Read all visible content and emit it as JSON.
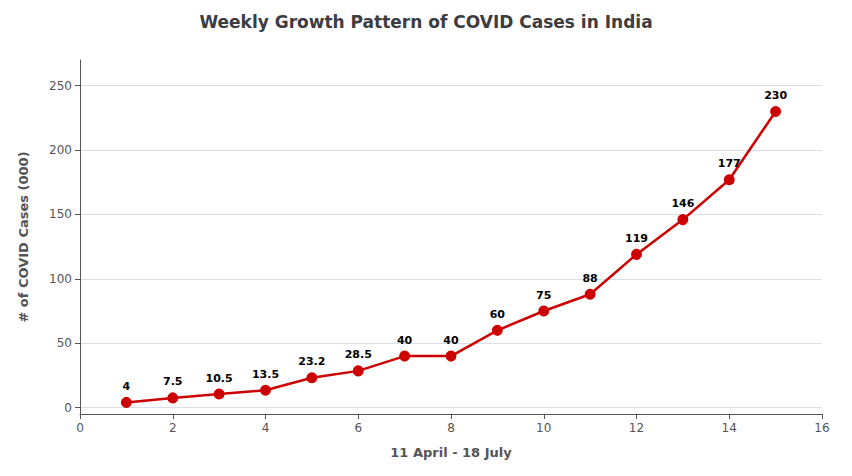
{
  "chart_data": {
    "type": "line",
    "title": "Weekly Growth Pattern of COVID Cases in India",
    "xlabel": "11 April - 18 July",
    "ylabel": "# of COVID Cases (000)",
    "x": [
      1,
      2,
      3,
      4,
      5,
      6,
      7,
      8,
      9,
      10,
      11,
      12,
      13,
      14,
      15
    ],
    "values": [
      4,
      7.5,
      10.5,
      13.5,
      23.2,
      28.5,
      40,
      40,
      60,
      75,
      88,
      119,
      146,
      177,
      230
    ],
    "xlim": [
      0,
      16
    ],
    "xticks": [
      0,
      2,
      4,
      6,
      8,
      10,
      12,
      14,
      16
    ],
    "ylim": [
      -5,
      270
    ],
    "yticks": [
      0,
      50,
      100,
      150,
      200,
      250
    ],
    "color": "#cc0000",
    "marker": "circle",
    "grid": true,
    "data_labels": true
  }
}
